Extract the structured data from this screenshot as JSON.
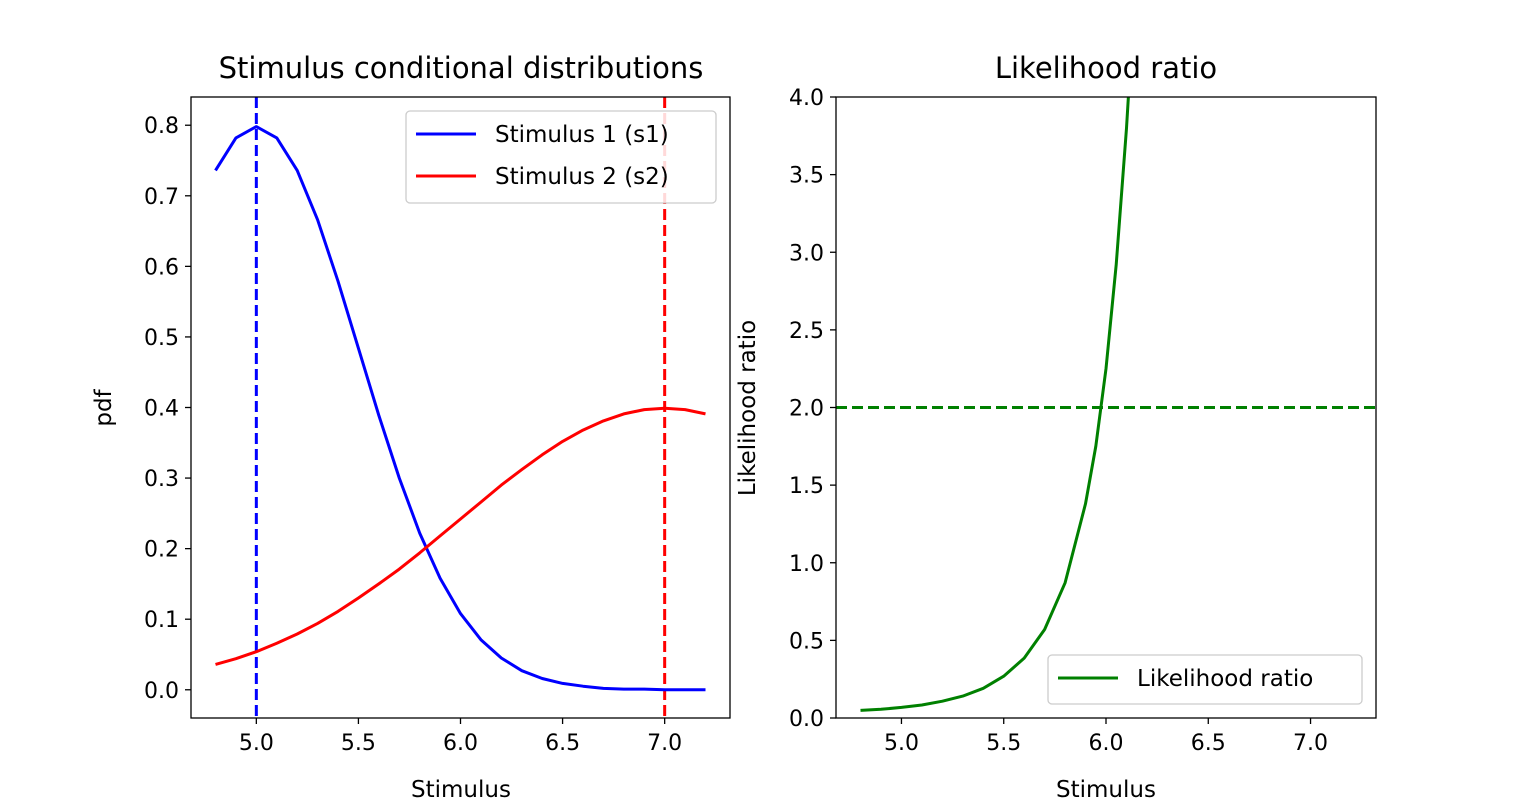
{
  "chart_data": [
    {
      "type": "line",
      "title": "Stimulus conditional distributions",
      "xlabel": "Stimulus",
      "ylabel": "pdf",
      "xlim": [
        4.68,
        7.32
      ],
      "ylim": [
        -0.04,
        0.84
      ],
      "xticks": [
        "5.0",
        "5.5",
        "6.0",
        "6.5",
        "7.0"
      ],
      "xtick_values": [
        5.0,
        5.5,
        6.0,
        6.5,
        7.0
      ],
      "yticks": [
        "0.0",
        "0.1",
        "0.2",
        "0.3",
        "0.4",
        "0.5",
        "0.6",
        "0.7",
        "0.8"
      ],
      "ytick_values": [
        0.0,
        0.1,
        0.2,
        0.3,
        0.4,
        0.5,
        0.6,
        0.7,
        0.8
      ],
      "grid": false,
      "legend_position": "upper right",
      "series": [
        {
          "name": "Stimulus 1 (s1)",
          "color": "#0000ff",
          "x": [
            4.8,
            4.9,
            5.0,
            5.1,
            5.2,
            5.3,
            5.4,
            5.5,
            5.6,
            5.7,
            5.8,
            5.9,
            6.0,
            6.1,
            6.2,
            6.3,
            6.4,
            6.5,
            6.6,
            6.7,
            6.8,
            6.9,
            7.0,
            7.1,
            7.2
          ],
          "y": [
            0.736,
            0.782,
            0.798,
            0.782,
            0.736,
            0.666,
            0.579,
            0.484,
            0.389,
            0.3,
            0.222,
            0.158,
            0.108,
            0.071,
            0.045,
            0.027,
            0.016,
            0.009,
            0.005,
            0.002,
            0.001,
            0.001,
            0.0,
            0.0,
            0.0
          ]
        },
        {
          "name": "Stimulus 2 (s2)",
          "color": "#ff0000",
          "x": [
            4.8,
            4.9,
            5.0,
            5.1,
            5.2,
            5.3,
            5.4,
            5.5,
            5.6,
            5.7,
            5.8,
            5.9,
            6.0,
            6.1,
            6.2,
            6.3,
            6.4,
            6.5,
            6.6,
            6.7,
            6.8,
            6.9,
            7.0,
            7.1,
            7.2
          ],
          "y": [
            0.036,
            0.044,
            0.054,
            0.066,
            0.079,
            0.094,
            0.111,
            0.13,
            0.15,
            0.171,
            0.194,
            0.218,
            0.242,
            0.266,
            0.29,
            0.312,
            0.333,
            0.352,
            0.368,
            0.381,
            0.391,
            0.397,
            0.399,
            0.397,
            0.391
          ]
        }
      ],
      "vlines": [
        {
          "x": 5.0,
          "color": "#0000ff",
          "style": "dashed"
        },
        {
          "x": 7.0,
          "color": "#ff0000",
          "style": "dashed"
        }
      ]
    },
    {
      "type": "line",
      "title": "Likelihood ratio",
      "xlabel": "Stimulus",
      "ylabel": "Likelihood ratio",
      "xlim": [
        4.68,
        7.32
      ],
      "ylim": [
        0.0,
        4.0
      ],
      "xticks": [
        "5.0",
        "5.5",
        "6.0",
        "6.5",
        "7.0"
      ],
      "xtick_values": [
        5.0,
        5.5,
        6.0,
        6.5,
        7.0
      ],
      "yticks": [
        "0.0",
        "0.5",
        "1.0",
        "1.5",
        "2.0",
        "2.5",
        "3.0",
        "3.5",
        "4.0"
      ],
      "ytick_values": [
        0.0,
        0.5,
        1.0,
        1.5,
        2.0,
        2.5,
        3.0,
        3.5,
        4.0
      ],
      "grid": false,
      "legend_position": "lower right",
      "series": [
        {
          "name": "Likelihood ratio",
          "color": "#008000",
          "x": [
            4.8,
            4.9,
            5.0,
            5.1,
            5.2,
            5.3,
            5.4,
            5.5,
            5.6,
            5.7,
            5.8,
            5.9,
            5.95,
            6.0,
            6.05,
            6.1,
            6.13
          ],
          "y": [
            0.049,
            0.056,
            0.068,
            0.084,
            0.108,
            0.141,
            0.191,
            0.269,
            0.386,
            0.57,
            0.871,
            1.38,
            1.75,
            2.25,
            2.92,
            3.8,
            4.45
          ]
        }
      ],
      "hlines": [
        {
          "y": 2.0,
          "color": "#008000",
          "style": "dashed"
        }
      ]
    }
  ]
}
